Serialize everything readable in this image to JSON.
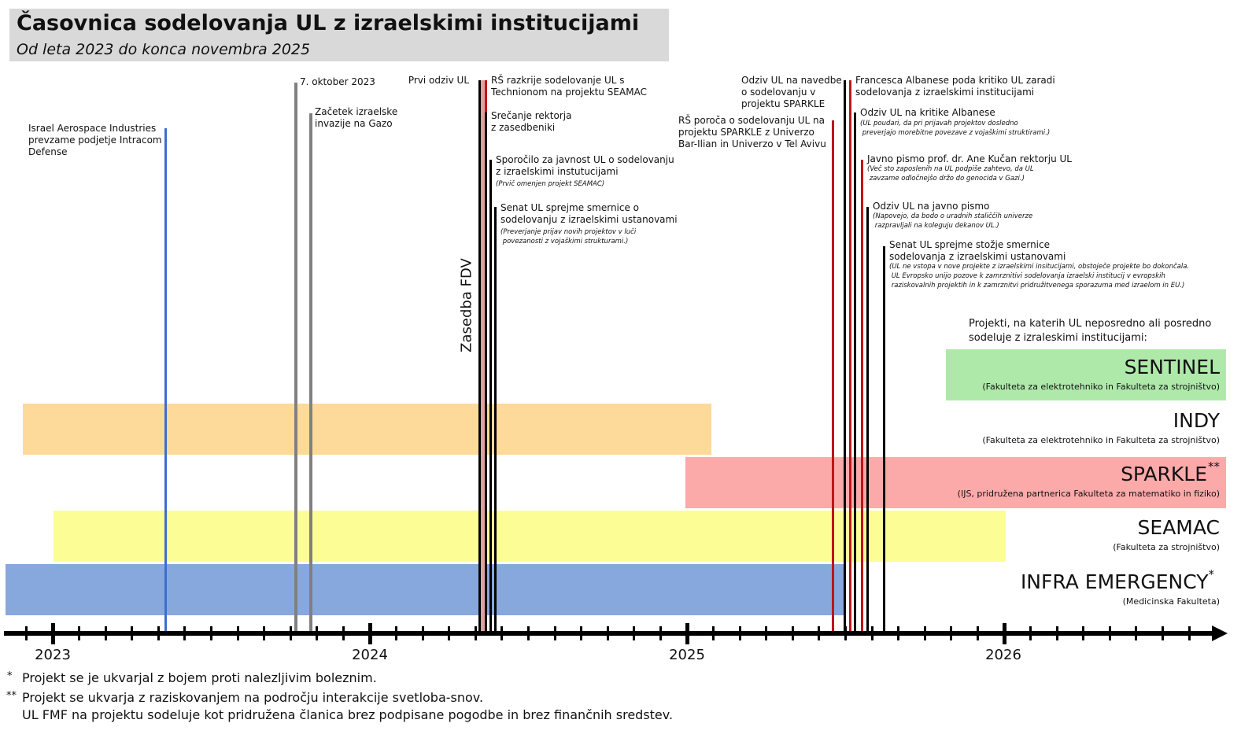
{
  "header": {
    "title": "Časovnica sodelovanja UL z izraelskimi institucijami",
    "subtitle": "Od leta 2023 do konca novembra 2025"
  },
  "colors": {
    "blue_line": "#3a6fd0",
    "gray_line": "#808080",
    "red_line": "#c0141c",
    "black_line": "#000000",
    "fdv_band": "#e0a0a0",
    "sentinel": "#aee9aa",
    "indy": "#fdda9a",
    "sparkle": "#fca9aa",
    "seamac": "#fdfd96",
    "infra": "#87a8dc",
    "title_bg": "#d9d9d9"
  },
  "events": [
    {
      "text": "Israel Aerospace Industries\nprevzame podjetje Intracom\nDefense",
      "color": "blue"
    },
    {
      "text": "7. oktober 2023",
      "color": "gray"
    },
    {
      "text": "Začetek izraelske\ninvazije na Gazo",
      "color": "gray"
    },
    {
      "text": "Prvi odziv UL",
      "color": "black"
    },
    {
      "text": "RŠ razkrije sodelovanje UL s\nTechnionom na projektu SEAMAC",
      "color": "red"
    },
    {
      "text": "Srečanje rektorja\nz zasedbeniki",
      "color": "black"
    },
    {
      "text": "Sporočilo za javnost UL o sodelovanju\nz izraelskimi instutucijami",
      "note": "(Prvič omenjen projekt SEAMAC)",
      "color": "black"
    },
    {
      "text": "Senat UL sprejme smernice o\nsodelovanju z izraelskimi ustanovami",
      "note": "(Preverjanje prijav novih projektov v luči\n povezanosti z vojaškimi strukturami.)",
      "color": "black"
    },
    {
      "text": "RŠ poroča o sodelovanju UL na\nprojektu SPARKLE z Univerzo\nBar-Ilian in Univerzo v Tel Avivu",
      "color": "red"
    },
    {
      "text": "Odziv UL na navedbe\no sodelovanju v\nprojektu SPARKLE",
      "color": "black"
    },
    {
      "text": "Francesca Albanese poda kritiko UL zaradi\nsodelovanja z izraelskimi institucijami",
      "color": "red"
    },
    {
      "text": "Odziv UL na kritike Albanese",
      "note": "(UL poudari, da pri prijavah projektov dosledno\n preverjajo morebitne povezave z vojaškimi struktirami.)",
      "color": "black"
    },
    {
      "text": "Javno pismo prof. dr. Ane Kučan rektorju UL",
      "note": "(Več sto zaposlenih na UL podpiše zahtevo, da UL\n zavzame odločnejšo držo do genocida v Gazi.)",
      "color": "red"
    },
    {
      "text": "Odziv UL na javno pismo",
      "note": "(Napovejo, da bodo o uradnih staliččih univerze\n razpravljali na koleguju dekanov UL.)",
      "color": "black"
    },
    {
      "text": "Senat UL sprejme stožje smernice\nsodelovanja z izraelskimi ustanovami",
      "note": "(UL ne vstopa v nove projekte z izraelskimi insitucijami, obstoječe projekte bo dokončala.\n UL Evropsko unijo pozove k zamrznitivi sodelovanja izraelski institucij v evropskih\n raziskovalnih projektih in k zamrznitvi pridružitvenega sporazuma med izraelom in EU.)",
      "color": "black"
    }
  ],
  "occupation_label": "Zasedba FDV",
  "projects_heading": "Projekti, na katerih UL neposredno ali posredno\nsodeluje z izraleskimi institucijami:",
  "projects": [
    {
      "name": "SENTINEL",
      "mark": "",
      "partners": "(Fakulteta za elektrotehniko in Fakulteta za strojništvo)"
    },
    {
      "name": "INDY",
      "mark": "",
      "partners": "(Fakulteta za elektrotehniko in Fakulteta za strojništvo)"
    },
    {
      "name": "SPARKLE",
      "mark": "**",
      "partners": "(IJS, pridružena partnerica Fakulteta za matematiko in fiziko)"
    },
    {
      "name": "SEAMAC",
      "mark": "",
      "partners": "(Fakulteta za strojništvo)"
    },
    {
      "name": "INFRA EMERGENCY",
      "mark": "*",
      "partners": "(Medicinska Fakulteta)"
    }
  ],
  "axis": {
    "years": [
      "2023",
      "2024",
      "2025",
      "2026"
    ],
    "tick_interval": "month"
  },
  "footnotes": [
    {
      "mark": "*",
      "text": "Projekt se je ukvarjal z bojem proti nalezljivim boleznim."
    },
    {
      "mark": "**",
      "text": "Projekt se ukvarja z raziskovanjem na področju interakcije svetloba-snov."
    },
    {
      "mark": "",
      "text": "UL FMF na projektu sodeluje kot pridružena članica brez podpisane pogodbe in brez finančnih sredstev."
    }
  ]
}
